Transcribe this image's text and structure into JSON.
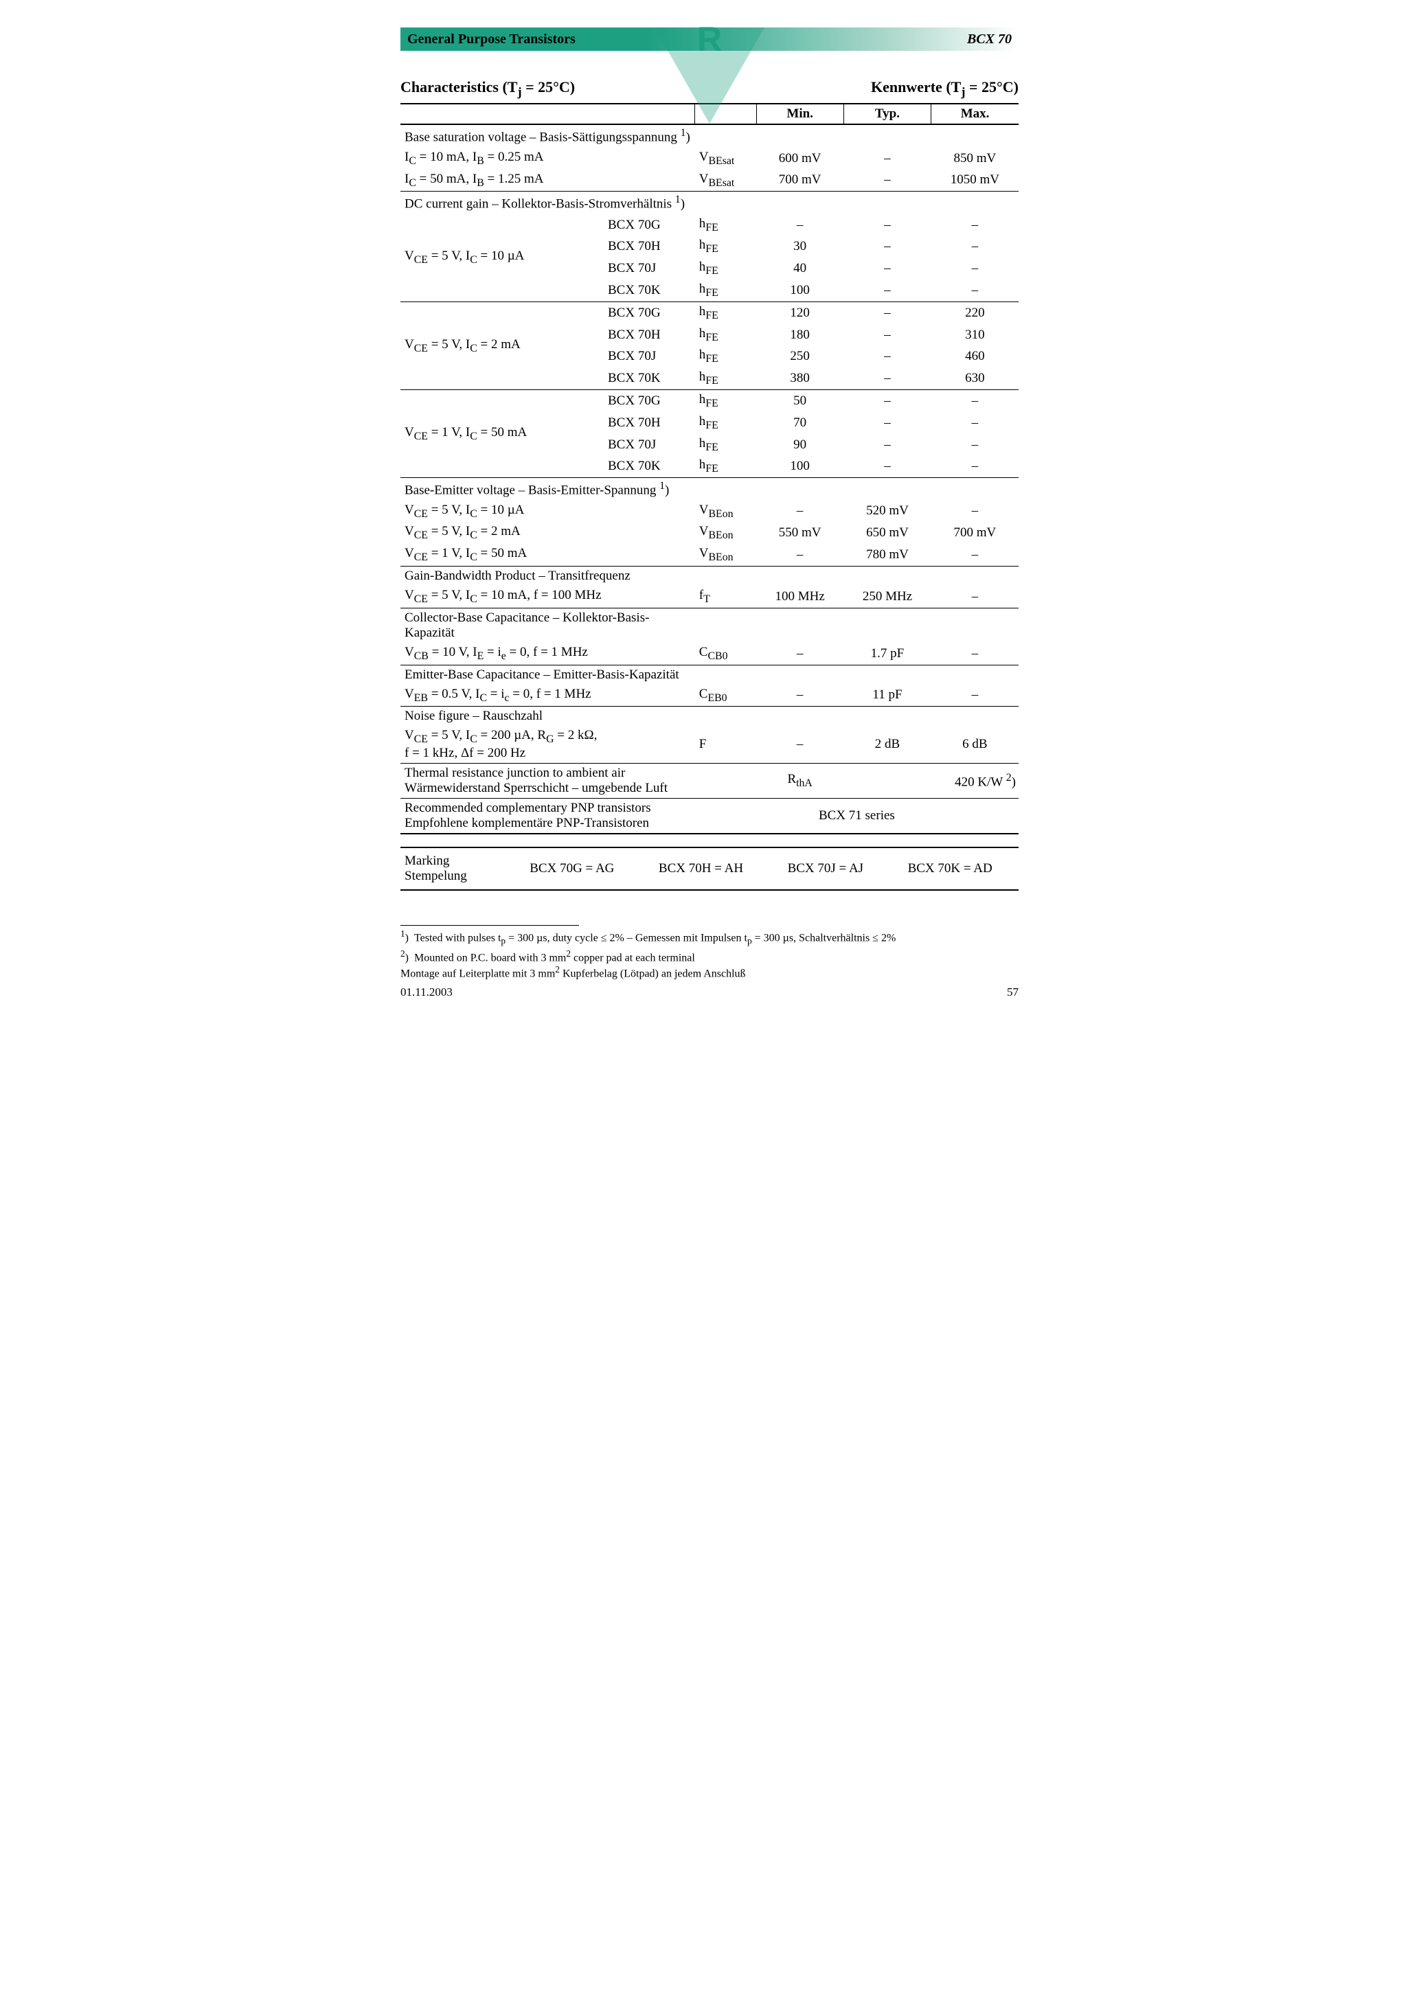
{
  "header": {
    "left": "General Purpose Transistors",
    "right": "BCX 70",
    "logo_letter": "R"
  },
  "char_title": {
    "left_html": "Characteristics (T<sub>j</sub> = 25°C)",
    "right_html": "Kennwerte (T<sub>j</sub> = 25°C)"
  },
  "col_headers": {
    "min": "Min.",
    "typ": "Typ.",
    "max": "Max."
  },
  "sections": {
    "base_sat": {
      "title_html": "Base saturation voltage – Basis-Sättigungsspannung <sup>1</sup>)",
      "rows": [
        {
          "cond_html": "I<sub>C</sub> = 10 mA, I<sub>B</sub> = 0.25 mA",
          "sym_html": "V<sub>BEsat</sub>",
          "min": "600 mV",
          "typ": "–",
          "max": "850 mV"
        },
        {
          "cond_html": "I<sub>C</sub> = 50 mA, I<sub>B</sub> = 1.25 mA",
          "sym_html": "V<sub>BEsat</sub>",
          "min": "700 mV",
          "typ": "–",
          "max": "1050 mV"
        }
      ]
    },
    "dc_gain": {
      "title_html": "DC current gain – Kollektor-Basis-Stromverhältnis <sup>1</sup>)",
      "groups": [
        {
          "cond_html": "V<sub>CE</sub> = 5 V, I<sub>C</sub> = 10 µA",
          "rows": [
            {
              "var": "BCX 70G",
              "sym_html": "h<sub>FE</sub>",
              "min": "–",
              "typ": "–",
              "max": "–"
            },
            {
              "var": "BCX 70H",
              "sym_html": "h<sub>FE</sub>",
              "min": "30",
              "typ": "–",
              "max": "–"
            },
            {
              "var": "BCX 70J",
              "sym_html": "h<sub>FE</sub>",
              "min": "40",
              "typ": "–",
              "max": "–"
            },
            {
              "var": "BCX 70K",
              "sym_html": "h<sub>FE</sub>",
              "min": "100",
              "typ": "–",
              "max": "–"
            }
          ]
        },
        {
          "cond_html": "V<sub>CE</sub> = 5 V, I<sub>C</sub> = 2 mA",
          "rows": [
            {
              "var": "BCX 70G",
              "sym_html": "h<sub>FE</sub>",
              "min": "120",
              "typ": "–",
              "max": "220"
            },
            {
              "var": "BCX 70H",
              "sym_html": "h<sub>FE</sub>",
              "min": "180",
              "typ": "–",
              "max": "310"
            },
            {
              "var": "BCX 70J",
              "sym_html": "h<sub>FE</sub>",
              "min": "250",
              "typ": "–",
              "max": "460"
            },
            {
              "var": "BCX 70K",
              "sym_html": "h<sub>FE</sub>",
              "min": "380",
              "typ": "–",
              "max": "630"
            }
          ]
        },
        {
          "cond_html": "V<sub>CE</sub> = 1 V, I<sub>C</sub> = 50 mA",
          "rows": [
            {
              "var": "BCX 70G",
              "sym_html": "h<sub>FE</sub>",
              "min": "50",
              "typ": "–",
              "max": "–"
            },
            {
              "var": "BCX 70H",
              "sym_html": "h<sub>FE</sub>",
              "min": "70",
              "typ": "–",
              "max": "–"
            },
            {
              "var": "BCX 70J",
              "sym_html": "h<sub>FE</sub>",
              "min": "90",
              "typ": "–",
              "max": "–"
            },
            {
              "var": "BCX 70K",
              "sym_html": "h<sub>FE</sub>",
              "min": "100",
              "typ": "–",
              "max": "–"
            }
          ]
        }
      ]
    },
    "be_voltage": {
      "title_html": "Base-Emitter voltage – Basis-Emitter-Spannung <sup>1</sup>)",
      "rows": [
        {
          "cond_html": "V<sub>CE</sub> = 5 V, I<sub>C</sub> = 10 µA",
          "sym_html": "V<sub>BEon</sub>",
          "min": "–",
          "typ": "520 mV",
          "max": "–"
        },
        {
          "cond_html": "V<sub>CE</sub> = 5 V, I<sub>C</sub> = 2 mA",
          "sym_html": "V<sub>BEon</sub>",
          "min": "550 mV",
          "typ": "650 mV",
          "max": "700 mV"
        },
        {
          "cond_html": "V<sub>CE</sub> = 1 V, I<sub>C</sub> = 50 mA",
          "sym_html": "V<sub>BEon</sub>",
          "min": "–",
          "typ": "780 mV",
          "max": "–"
        }
      ]
    },
    "gbw": {
      "title_html": "Gain-Bandwidth Product – Transitfrequenz",
      "rows": [
        {
          "cond_html": "V<sub>CE</sub> = 5 V, I<sub>C</sub> = 10 mA, f = 100 MHz",
          "sym_html": "f<sub>T</sub>",
          "min": "100 MHz",
          "typ": "250 MHz",
          "max": "–"
        }
      ]
    },
    "ccb": {
      "title_html": "Collector-Base Capacitance – Kollektor-Basis-Kapazität",
      "rows": [
        {
          "cond_html": "V<sub>CB</sub> = 10 V, I<sub>E</sub> = i<sub>e</sub> = 0, f = 1 MHz",
          "sym_html": "C<sub>CB0</sub>",
          "min": "–",
          "typ": "1.7 pF",
          "max": "–"
        }
      ]
    },
    "ceb": {
      "title_html": "Emitter-Base Capacitance – Emitter-Basis-Kapazität",
      "rows": [
        {
          "cond_html": "V<sub>EB</sub> = 0.5 V, I<sub>C</sub> = i<sub>c</sub> = 0, f = 1 MHz",
          "sym_html": "C<sub>EB0</sub>",
          "min": "–",
          "typ": "11 pF",
          "max": "–"
        }
      ]
    },
    "noise": {
      "title_html": "Noise figure – Rauschzahl",
      "rows": [
        {
          "cond_html": "V<sub>CE</sub> = 5 V, I<sub>C</sub> = 200 µA, R<sub>G</sub> = 2 kΩ,<br>f = 1 kHz, Δf = 200 Hz",
          "sym_html": "F",
          "min": "–",
          "typ": "2 dB",
          "max": "6 dB"
        }
      ]
    },
    "thermal": {
      "text_html": "Thermal resistance junction to ambient air<br>Wärmewiderstand Sperrschicht – umgebende Luft",
      "sym_html": "R<sub>thA</sub>",
      "value_html": "420 K/W <sup>2</sup>)"
    },
    "complementary": {
      "text_html": "Recommended complementary PNP transistors<br>Empfohlene komplementäre PNP-Transistoren",
      "value": "BCX 71 series"
    }
  },
  "marking": {
    "label_html": "Marking<br>Stempelung",
    "items": [
      "BCX 70G = AG",
      "BCX 70H = AH",
      "BCX 70J = AJ",
      "BCX 70K = AD"
    ]
  },
  "footnotes": [
    {
      "num": "1",
      "text_html": "Tested with pulses t<sub>p</sub> = 300 µs, duty cycle ≤ 2%  –  Gemessen mit Impulsen t<sub>p</sub> = 300 µs, Schaltverhältnis ≤ 2%"
    },
    {
      "num": "2",
      "text_html": "Mounted on P.C. board with 3 mm<sup>2</sup> copper pad at each terminal<br>Montage auf Leiterplatte mit 3 mm<sup>2</sup> Kupferbelag (Lötpad) an jedem Anschluß"
    }
  ],
  "footer": {
    "date": "01.11.2003",
    "page": "57"
  }
}
